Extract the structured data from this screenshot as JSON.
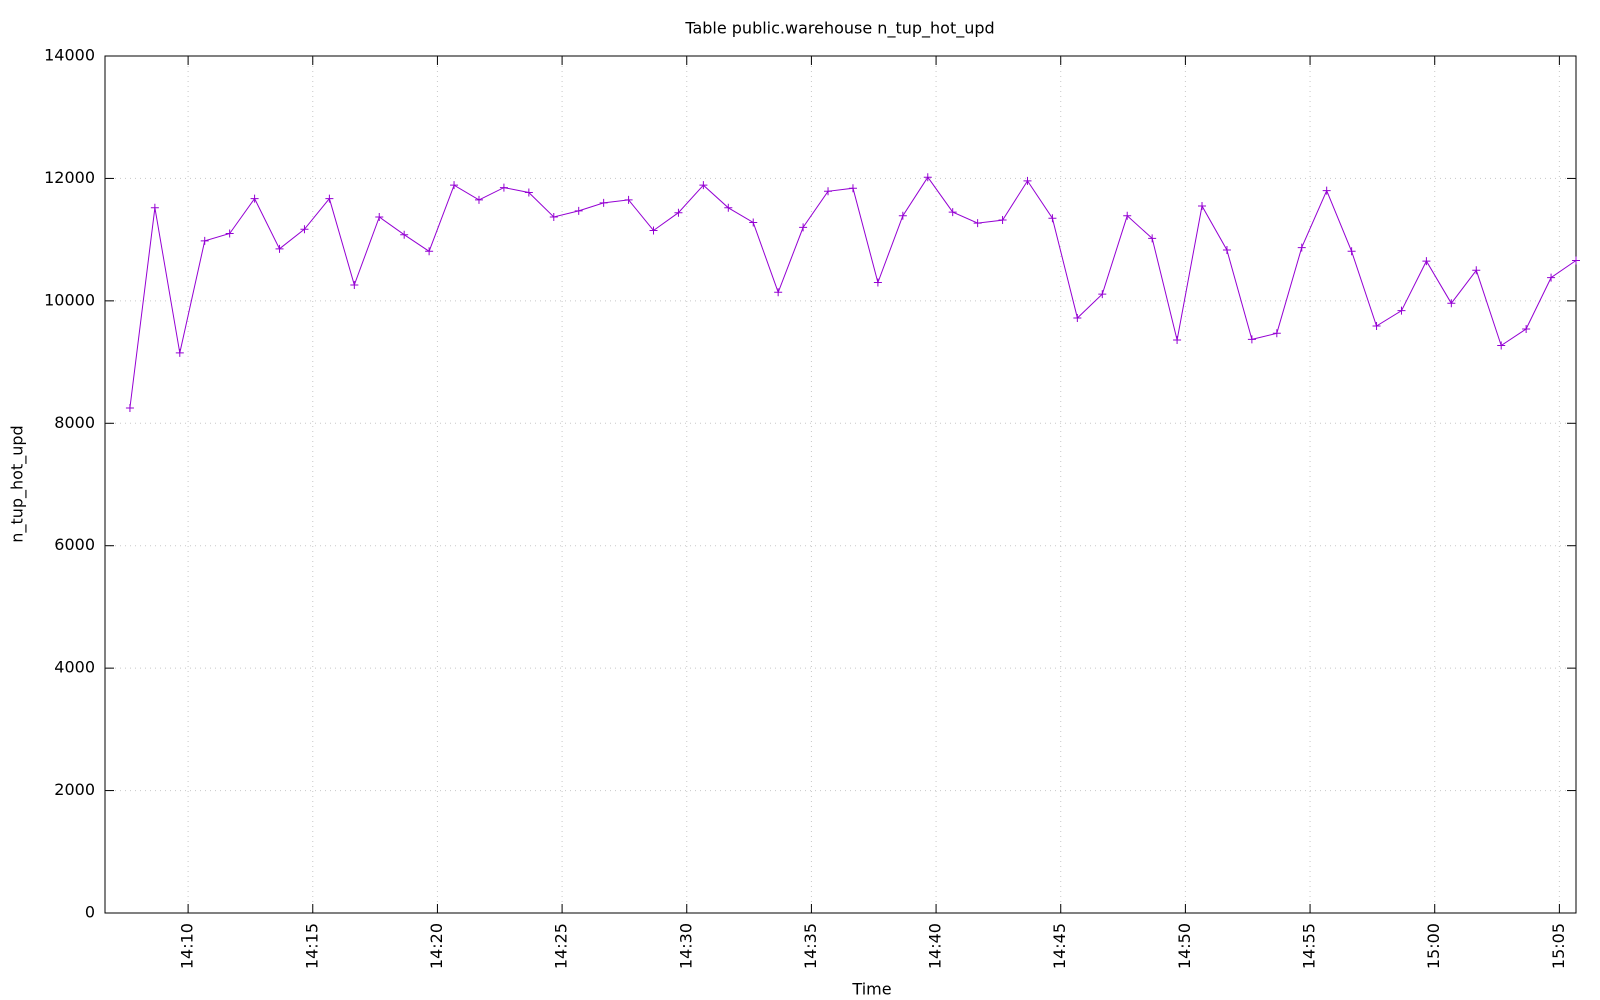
{
  "chart_data": {
    "type": "line",
    "title": "Table public.warehouse n_tup_hot_upd",
    "x_label": "Time",
    "y_label": "n_tup_hot_upd",
    "color": "#9400d3",
    "grid": true,
    "x": [
      "14:07:40",
      "14:08:40",
      "14:09:40",
      "14:10:40",
      "14:11:40",
      "14:12:40",
      "14:13:40",
      "14:14:40",
      "14:15:40",
      "14:16:40",
      "14:17:40",
      "14:18:40",
      "14:19:40",
      "14:20:40",
      "14:21:40",
      "14:22:40",
      "14:23:40",
      "14:24:40",
      "14:25:40",
      "14:26:40",
      "14:27:40",
      "14:28:40",
      "14:29:40",
      "14:30:40",
      "14:31:40",
      "14:32:40",
      "14:33:40",
      "14:34:40",
      "14:35:40",
      "14:36:40",
      "14:37:40",
      "14:38:40",
      "14:39:40",
      "14:40:40",
      "14:41:40",
      "14:42:40",
      "14:43:40",
      "14:44:40",
      "14:45:40",
      "14:46:40",
      "14:47:40",
      "14:48:40",
      "14:49:40",
      "14:50:40",
      "14:51:40",
      "14:52:40",
      "14:53:40",
      "14:54:40",
      "14:55:40",
      "14:56:40",
      "14:57:40",
      "14:58:40",
      "14:59:40",
      "15:00:40",
      "15:01:40",
      "15:02:40",
      "15:03:40",
      "15:04:40",
      "15:05:40"
    ],
    "values": [
      8250,
      11520,
      9150,
      10980,
      11100,
      11670,
      10850,
      11170,
      11670,
      10260,
      11370,
      11080,
      10810,
      11890,
      11650,
      11850,
      11770,
      11370,
      11470,
      11600,
      11650,
      11150,
      11440,
      11890,
      11520,
      11280,
      10140,
      11200,
      11790,
      11840,
      10300,
      11390,
      12020,
      11450,
      11270,
      11320,
      11960,
      11350,
      9720,
      10110,
      11390,
      11020,
      9360,
      11550,
      10830,
      9370,
      9470,
      10870,
      11800,
      10810,
      9590,
      9840,
      10650,
      9960,
      10500,
      9270,
      9540,
      10380,
      10660
    ],
    "xlim": [
      "14:06:40",
      "15:05:40"
    ],
    "xticks": [
      "14:10",
      "14:15",
      "14:20",
      "14:25",
      "14:30",
      "14:35",
      "14:40",
      "14:45",
      "14:50",
      "14:55",
      "15:00",
      "15:05"
    ],
    "ylim": [
      0,
      14000
    ],
    "yticks": [
      0,
      2000,
      4000,
      6000,
      8000,
      10000,
      12000,
      14000
    ]
  }
}
